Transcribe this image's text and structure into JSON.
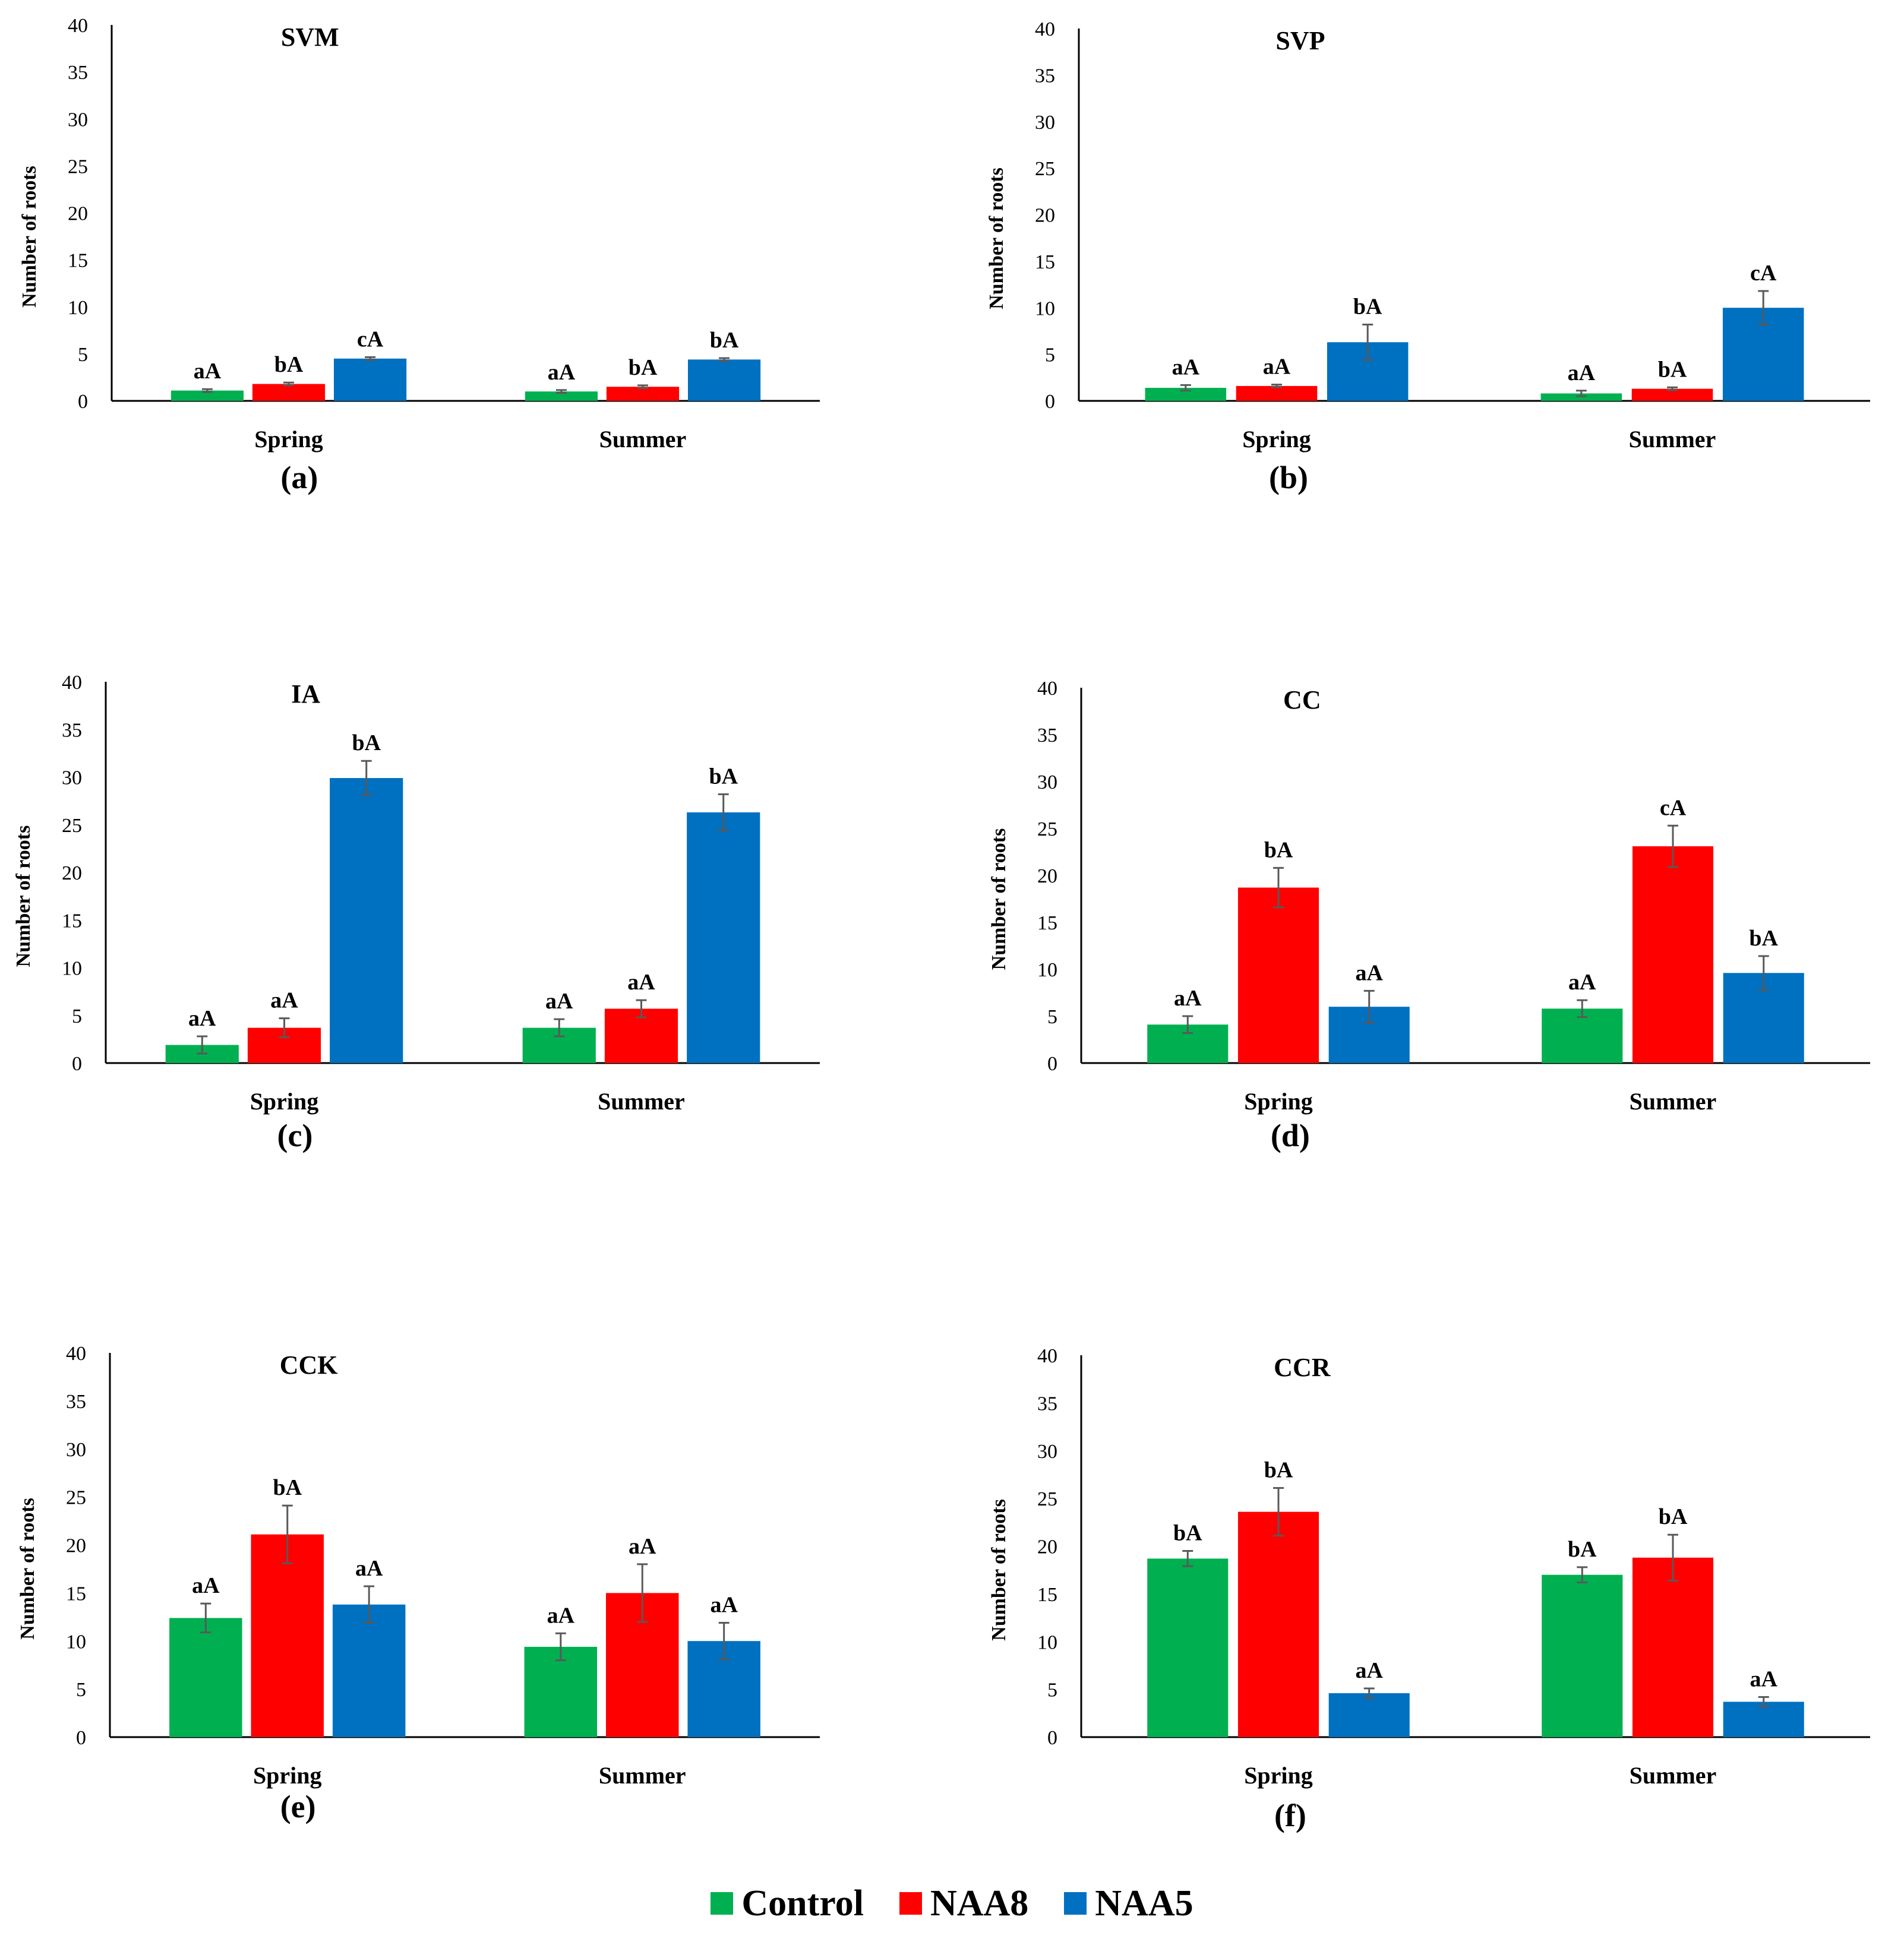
{
  "legend": [
    {
      "name": "Control",
      "color": "#00b050"
    },
    {
      "name": "NAA8",
      "color": "#ff0000"
    },
    {
      "name": "NAA5",
      "color": "#0070c0"
    }
  ],
  "chart_data": [
    {
      "type": "bar",
      "panel_label": "(a)",
      "title": "SVM",
      "ylabel": "Number of roots",
      "ylim": [
        0,
        40
      ],
      "yticks": [
        "0",
        "5",
        "10",
        "15",
        "20",
        "25",
        "30",
        "35",
        "40"
      ],
      "categories": [
        "Spring",
        "Summer"
      ],
      "series": [
        {
          "name": "Control",
          "values": [
            1.1,
            1.0
          ],
          "errors": [
            0.15,
            0.15
          ],
          "letters": [
            "aA",
            "aA"
          ]
        },
        {
          "name": "NAA8",
          "values": [
            1.8,
            1.5
          ],
          "errors": [
            0.15,
            0.15
          ],
          "letters": [
            "bA",
            "bA"
          ]
        },
        {
          "name": "NAA5",
          "values": [
            4.5,
            4.4
          ],
          "errors": [
            0.15,
            0.15
          ],
          "letters": [
            "cA",
            "bA"
          ]
        }
      ]
    },
    {
      "type": "bar",
      "panel_label": "(b)",
      "title": "SVP",
      "ylabel": "Number of roots",
      "ylim": [
        0,
        40
      ],
      "yticks": [
        "0",
        "5",
        "10",
        "15",
        "20",
        "25",
        "30",
        "35",
        "40"
      ],
      "categories": [
        "Spring",
        "Summer"
      ],
      "series": [
        {
          "name": "Control",
          "values": [
            1.4,
            0.8
          ],
          "errors": [
            0.3,
            0.3
          ],
          "letters": [
            "aA",
            "aA"
          ]
        },
        {
          "name": "NAA8",
          "values": [
            1.6,
            1.3
          ],
          "errors": [
            0.15,
            0.15
          ],
          "letters": [
            "aA",
            "bA"
          ]
        },
        {
          "name": "NAA5",
          "values": [
            6.3,
            10.0
          ],
          "errors": [
            1.9,
            1.8
          ],
          "letters": [
            "bA",
            "cA"
          ]
        }
      ]
    },
    {
      "type": "bar",
      "panel_label": "(c)",
      "title": "IA",
      "ylabel": "Number of roots",
      "ylim": [
        0,
        40
      ],
      "yticks": [
        "0",
        "5",
        "10",
        "15",
        "20",
        "25",
        "30",
        "35",
        "40"
      ],
      "categories": [
        "Spring",
        "Summer"
      ],
      "series": [
        {
          "name": "Control",
          "values": [
            1.9,
            3.7
          ],
          "errors": [
            0.9,
            0.9
          ],
          "letters": [
            "aA",
            "aA"
          ]
        },
        {
          "name": "NAA8",
          "values": [
            3.7,
            5.7
          ],
          "errors": [
            1.0,
            0.9
          ],
          "letters": [
            "aA",
            "aA"
          ]
        },
        {
          "name": "NAA5",
          "values": [
            29.9,
            26.3
          ],
          "errors": [
            1.8,
            1.9
          ],
          "letters": [
            "bA",
            "bA"
          ]
        }
      ]
    },
    {
      "type": "bar",
      "panel_label": "(d)",
      "title": "CC",
      "ylabel": "Number of roots",
      "ylim": [
        0,
        40
      ],
      "yticks": [
        "0",
        "5",
        "10",
        "15",
        "20",
        "25",
        "30",
        "35",
        "40"
      ],
      "categories": [
        "Spring",
        "Summer"
      ],
      "series": [
        {
          "name": "Control",
          "values": [
            4.1,
            5.8
          ],
          "errors": [
            0.9,
            0.9
          ],
          "letters": [
            "aA",
            "aA"
          ]
        },
        {
          "name": "NAA8",
          "values": [
            18.7,
            23.1
          ],
          "errors": [
            2.1,
            2.2
          ],
          "letters": [
            "bA",
            "cA"
          ]
        },
        {
          "name": "NAA5",
          "values": [
            6.0,
            9.6
          ],
          "errors": [
            1.7,
            1.8
          ],
          "letters": [
            "aA",
            "bA"
          ]
        }
      ]
    },
    {
      "type": "bar",
      "panel_label": "(e)",
      "title": "CCK",
      "ylabel": "Number of roots",
      "ylim": [
        0,
        40
      ],
      "yticks": [
        "0",
        "5",
        "10",
        "15",
        "20",
        "25",
        "30",
        "35",
        "40"
      ],
      "categories": [
        "Spring",
        "Summer"
      ],
      "series": [
        {
          "name": "Control",
          "values": [
            12.4,
            9.4
          ],
          "errors": [
            1.5,
            1.4
          ],
          "letters": [
            "aA",
            "aA"
          ]
        },
        {
          "name": "NAA8",
          "values": [
            21.1,
            15.0
          ],
          "errors": [
            3.0,
            3.0
          ],
          "letters": [
            "bA",
            "aA"
          ]
        },
        {
          "name": "NAA5",
          "values": [
            13.8,
            10.0
          ],
          "errors": [
            1.9,
            1.9
          ],
          "letters": [
            "aA",
            "aA"
          ]
        }
      ]
    },
    {
      "type": "bar",
      "panel_label": "(f)",
      "title": "CCR",
      "ylabel": "Number of roots",
      "ylim": [
        0,
        40
      ],
      "yticks": [
        "0",
        "5",
        "10",
        "15",
        "20",
        "25",
        "30",
        "35",
        "40"
      ],
      "categories": [
        "Spring",
        "Summer"
      ],
      "series": [
        {
          "name": "Control",
          "values": [
            18.7,
            17.0
          ],
          "errors": [
            0.8,
            0.8
          ],
          "letters": [
            "bA",
            "bA"
          ]
        },
        {
          "name": "NAA8",
          "values": [
            23.6,
            18.8
          ],
          "errors": [
            2.5,
            2.4
          ],
          "letters": [
            "bA",
            "bA"
          ]
        },
        {
          "name": "NAA5",
          "values": [
            4.6,
            3.7
          ],
          "errors": [
            0.5,
            0.5
          ],
          "letters": [
            "aA",
            "aA"
          ]
        }
      ]
    }
  ]
}
